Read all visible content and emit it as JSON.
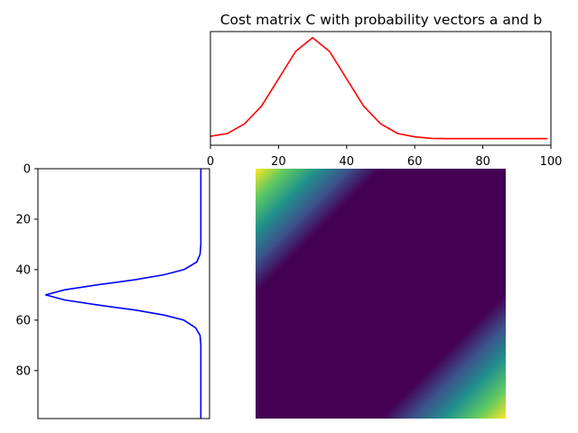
{
  "chart_data": [
    {
      "type": "line",
      "panel": "top",
      "title": "Cost matrix C with probability vectors a and b",
      "xlabel": "",
      "ylabel": "",
      "xlim": [
        0,
        100
      ],
      "x_ticks": [
        0,
        20,
        40,
        60,
        80,
        100
      ],
      "y_ticks_visible": false,
      "series": [
        {
          "color": "#ff0000",
          "x": [
            0,
            5,
            10,
            15,
            20,
            25,
            30,
            35,
            40,
            45,
            50,
            55,
            60,
            65,
            70,
            75,
            80,
            85,
            90,
            95,
            99
          ],
          "y": [
            0.0011,
            0.0022,
            0.006,
            0.013,
            0.0237,
            0.0345,
            0.0399,
            0.0345,
            0.0237,
            0.013,
            0.006,
            0.0022,
            0.0009,
            0.0003,
            0.0002,
            0.0002,
            0.0002,
            0.0002,
            0.0002,
            0.0002,
            0.0002
          ]
        }
      ]
    },
    {
      "type": "line",
      "panel": "left",
      "orientation": "vertical",
      "ylim": [
        99,
        0
      ],
      "y_ticks": [
        0,
        20,
        40,
        60,
        80
      ],
      "x_ticks_visible": false,
      "x_inverted": true,
      "series": [
        {
          "color": "#0000ff",
          "index": [
            0,
            10,
            20,
            30,
            34,
            37,
            40,
            42,
            44,
            46,
            48,
            50,
            52,
            54,
            56,
            58,
            60,
            63,
            66,
            70,
            80,
            90,
            99
          ],
          "value": [
            0.0002,
            0.0002,
            0.0002,
            0.0002,
            0.0004,
            0.0012,
            0.0043,
            0.009,
            0.016,
            0.025,
            0.033,
            0.0375,
            0.033,
            0.025,
            0.016,
            0.009,
            0.0043,
            0.0015,
            0.0004,
            0.0002,
            0.0002,
            0.0002,
            0.0002
          ]
        }
      ]
    },
    {
      "type": "heatmap",
      "panel": "main",
      "rows": 100,
      "cols": 100,
      "cell_formula": "(i - j)^2",
      "value_range": [
        0,
        9801
      ],
      "colormap": "viridis",
      "axes_visible": false
    }
  ]
}
